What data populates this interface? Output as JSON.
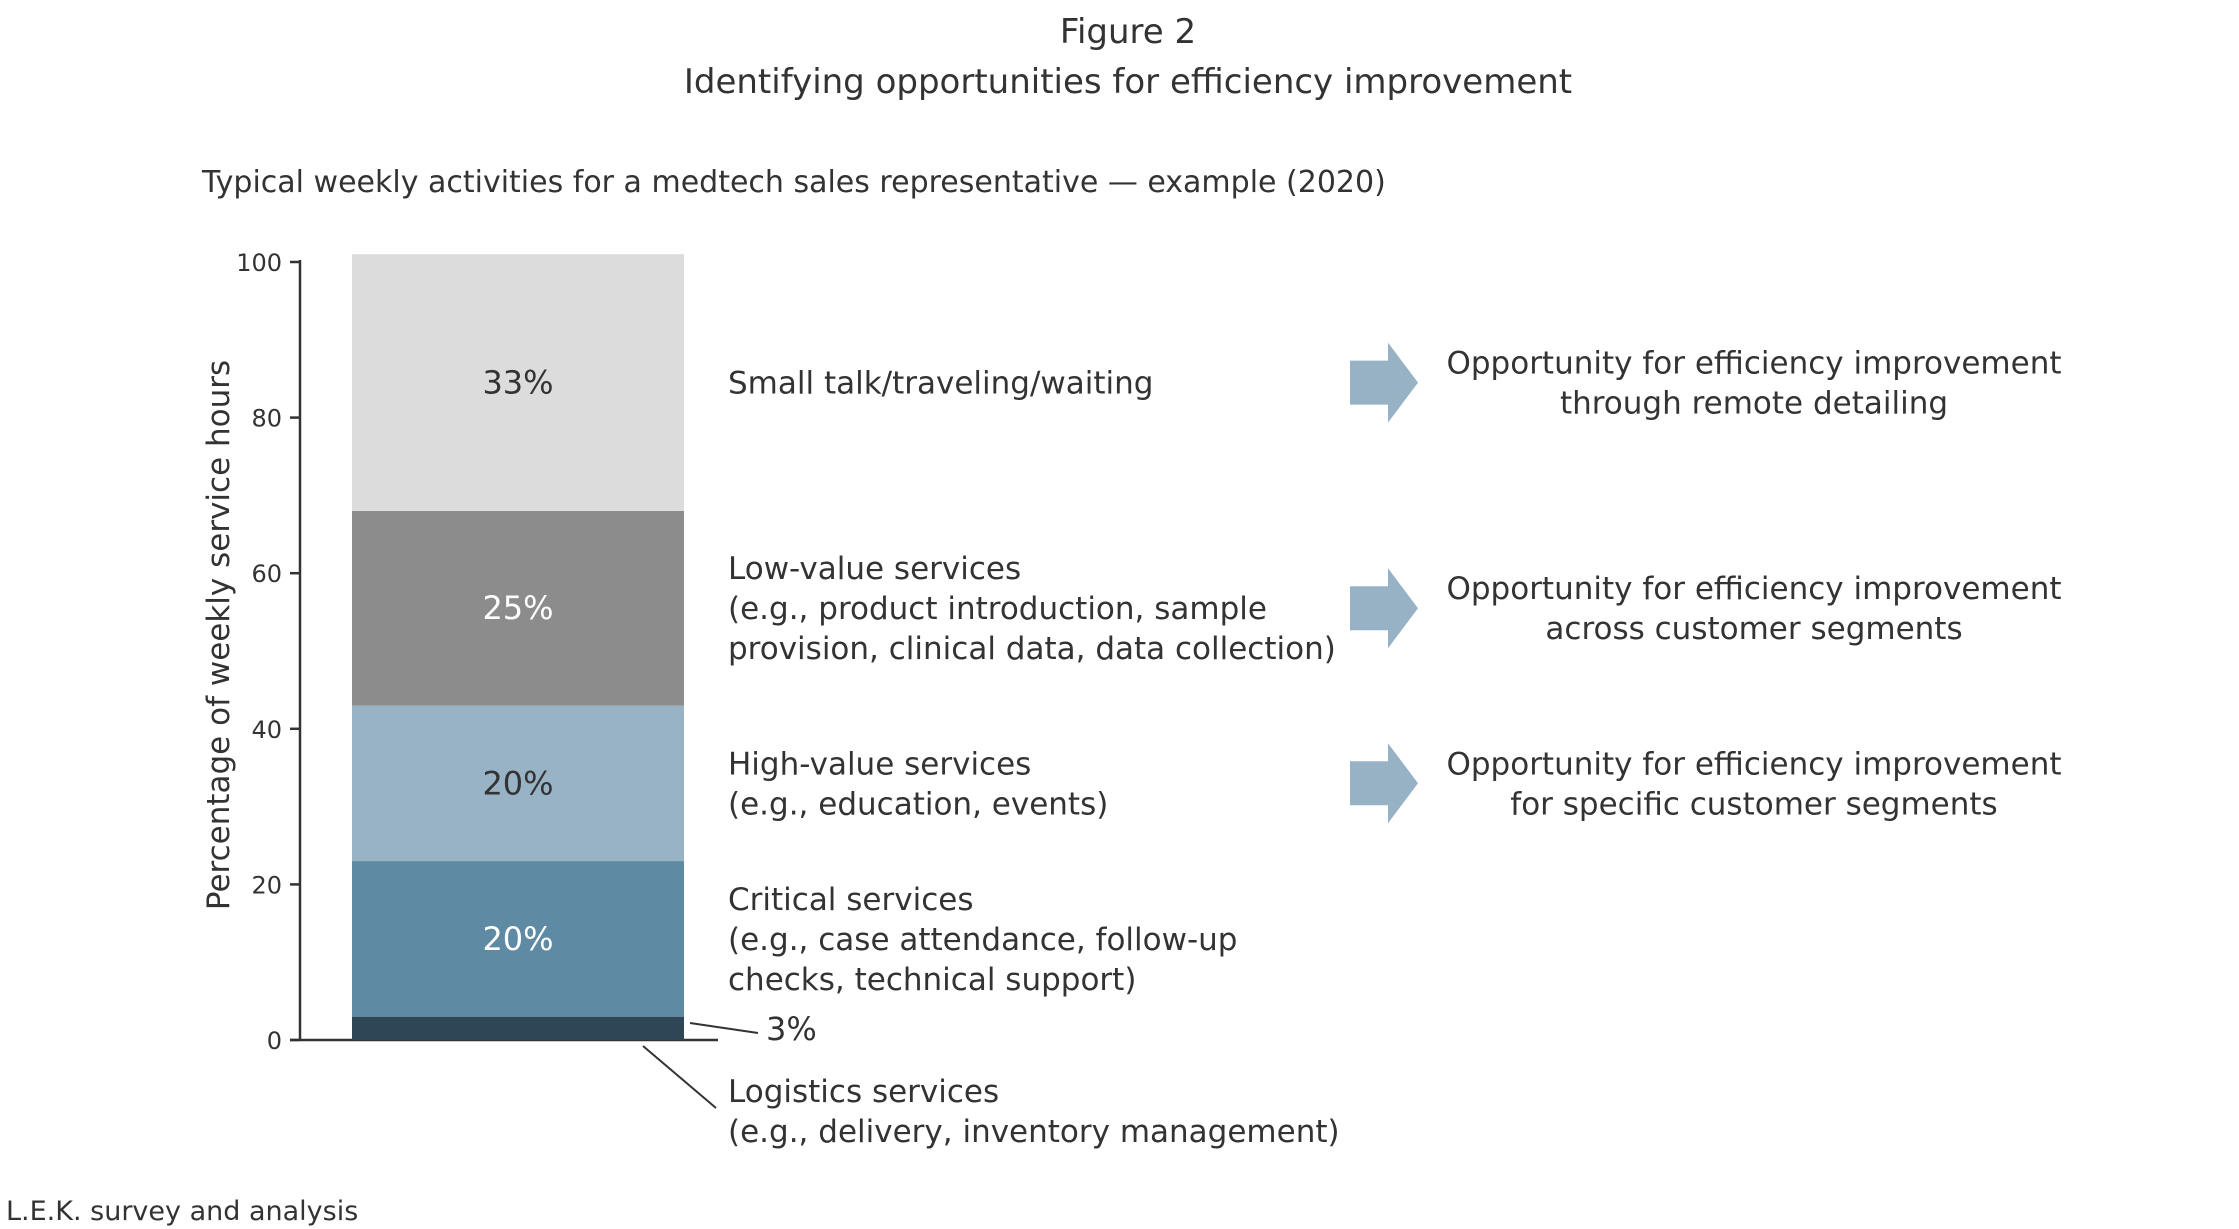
{
  "figure_label": "Figure 2",
  "title": "Identifying opportunities for efficiency improvement",
  "subtitle": "Typical weekly activities for a medtech sales representative — example (2020)",
  "source": "L.E.K. survey and analysis",
  "chart_data": {
    "type": "bar",
    "stacked": true,
    "ylabel": "Percentage of weekly service hours",
    "ylim": [
      0,
      100
    ],
    "yticks": [
      0,
      20,
      40,
      60,
      80,
      100
    ],
    "grid": false,
    "legend": "labels to the right of segments",
    "series": [
      {
        "value": 3,
        "value_label": "3%",
        "color": "#2e4756",
        "label_lines": [
          "Logistics services",
          "(e.g., delivery, inventory management)"
        ],
        "opportunity_lines": []
      },
      {
        "value": 20,
        "value_label": "20%",
        "color": "#5f8aa4",
        "text_color": "#ffffff",
        "label_lines": [
          "Critical services",
          "(e.g., case attendance, follow-up",
          "checks, technical support)"
        ],
        "opportunity_lines": []
      },
      {
        "value": 20,
        "value_label": "20%",
        "color": "#99b3c6",
        "text_color": "#333333",
        "label_lines": [
          "High-value services",
          "(e.g., education, events)"
        ],
        "opportunity_lines": [
          "Opportunity for efficiency improvement",
          "for specific customer segments"
        ]
      },
      {
        "value": 25,
        "value_label": "25%",
        "color": "#8c8c8c",
        "text_color": "#ffffff",
        "label_lines": [
          "Low-value services",
          "(e.g., product introduction, sample",
          "provision, clinical data, data collection)"
        ],
        "opportunity_lines": [
          "Opportunity for efficiency improvement",
          "across customer segments"
        ]
      },
      {
        "value": 33,
        "value_label": "33%",
        "color": "#dcdcdc",
        "text_color": "#333333",
        "label_lines": [
          "Small talk/traveling/waiting"
        ],
        "opportunity_lines": [
          "Opportunity for efficiency improvement",
          "through remote detailing"
        ]
      }
    ],
    "arrow_color": "#97b2c5"
  }
}
